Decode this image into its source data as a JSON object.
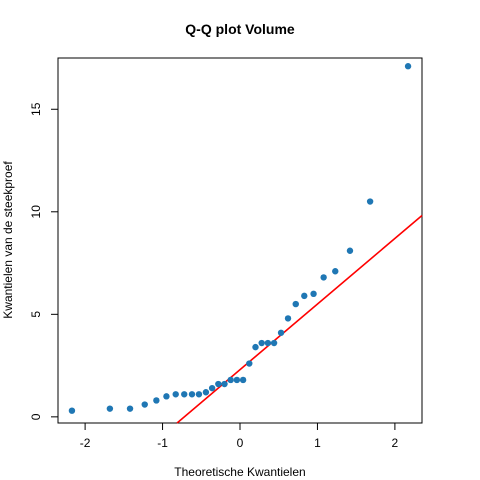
{
  "chart_data": {
    "type": "scatter",
    "title": "Q-Q plot Volume",
    "xlabel": "Theoretische Kwantielen",
    "ylabel": "Kwantielen van de steekproef",
    "xlim": [
      -2.35,
      2.35
    ],
    "ylim": [
      -0.3,
      17.5
    ],
    "x_ticks": [
      -2,
      -1,
      0,
      1,
      2
    ],
    "y_ticks": [
      0,
      5,
      10,
      15
    ],
    "grid": false,
    "point_color": "#1f77b4",
    "line_color": "#ff0000",
    "points": [
      {
        "x": -2.17,
        "y": 0.3
      },
      {
        "x": -1.68,
        "y": 0.4
      },
      {
        "x": -1.42,
        "y": 0.4
      },
      {
        "x": -1.23,
        "y": 0.6
      },
      {
        "x": -1.08,
        "y": 0.8
      },
      {
        "x": -0.95,
        "y": 1.0
      },
      {
        "x": -0.83,
        "y": 1.1
      },
      {
        "x": -0.72,
        "y": 1.1
      },
      {
        "x": -0.62,
        "y": 1.1
      },
      {
        "x": -0.53,
        "y": 1.1
      },
      {
        "x": -0.44,
        "y": 1.2
      },
      {
        "x": -0.36,
        "y": 1.4
      },
      {
        "x": -0.28,
        "y": 1.6
      },
      {
        "x": -0.2,
        "y": 1.6
      },
      {
        "x": -0.12,
        "y": 1.8
      },
      {
        "x": -0.04,
        "y": 1.8
      },
      {
        "x": 0.04,
        "y": 1.8
      },
      {
        "x": 0.12,
        "y": 2.6
      },
      {
        "x": 0.2,
        "y": 3.4
      },
      {
        "x": 0.28,
        "y": 3.6
      },
      {
        "x": 0.36,
        "y": 3.6
      },
      {
        "x": 0.44,
        "y": 3.6
      },
      {
        "x": 0.53,
        "y": 4.1
      },
      {
        "x": 0.62,
        "y": 4.8
      },
      {
        "x": 0.72,
        "y": 5.5
      },
      {
        "x": 0.83,
        "y": 5.9
      },
      {
        "x": 0.95,
        "y": 6.0
      },
      {
        "x": 1.08,
        "y": 6.8
      },
      {
        "x": 1.23,
        "y": 7.1
      },
      {
        "x": 1.42,
        "y": 8.1
      },
      {
        "x": 1.68,
        "y": 10.5
      },
      {
        "x": 2.17,
        "y": 17.1
      }
    ],
    "reference_line": {
      "intercept": 2.3,
      "slope": 3.2
    }
  }
}
